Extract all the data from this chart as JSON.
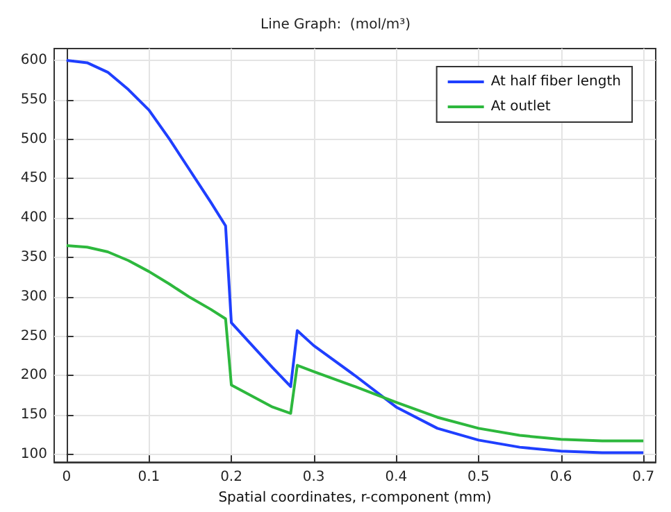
{
  "chart_data": {
    "type": "line",
    "title": "Line Graph:  (mol/m³)",
    "xlabel": "Spatial coordinates, r-component (mm)",
    "x": [
      0,
      0.025,
      0.05,
      0.075,
      0.1,
      0.125,
      0.15,
      0.175,
      0.193,
      0.2,
      0.25,
      0.272,
      0.28,
      0.3,
      0.35,
      0.4,
      0.45,
      0.5,
      0.55,
      0.6,
      0.65,
      0.7
    ],
    "series": [
      {
        "name": "At half fiber length",
        "color": "#1f3fff",
        "values": [
          600,
          597,
          585,
          563,
          537,
          500,
          460,
          420,
          390,
          267,
          210,
          186,
          257,
          238,
          200,
          160,
          133,
          118,
          109,
          104,
          102,
          102
        ]
      },
      {
        "name": "At outlet",
        "color": "#2db83d",
        "values": [
          365,
          363,
          357,
          346,
          332,
          316,
          299,
          284,
          272,
          188,
          160,
          152,
          213,
          205,
          186,
          166,
          147,
          133,
          124,
          119,
          117,
          117
        ]
      }
    ],
    "xlim": [
      -0.015,
      0.715
    ],
    "ylim": [
      90,
      615
    ],
    "xticks": [
      0,
      0.1,
      0.2,
      0.3,
      0.4,
      0.5,
      0.6,
      0.7
    ],
    "yticks": [
      100,
      150,
      200,
      250,
      300,
      350,
      400,
      450,
      500,
      550,
      600
    ],
    "grid": true,
    "legend": "top right",
    "marker": "none",
    "line_style": "solid"
  }
}
